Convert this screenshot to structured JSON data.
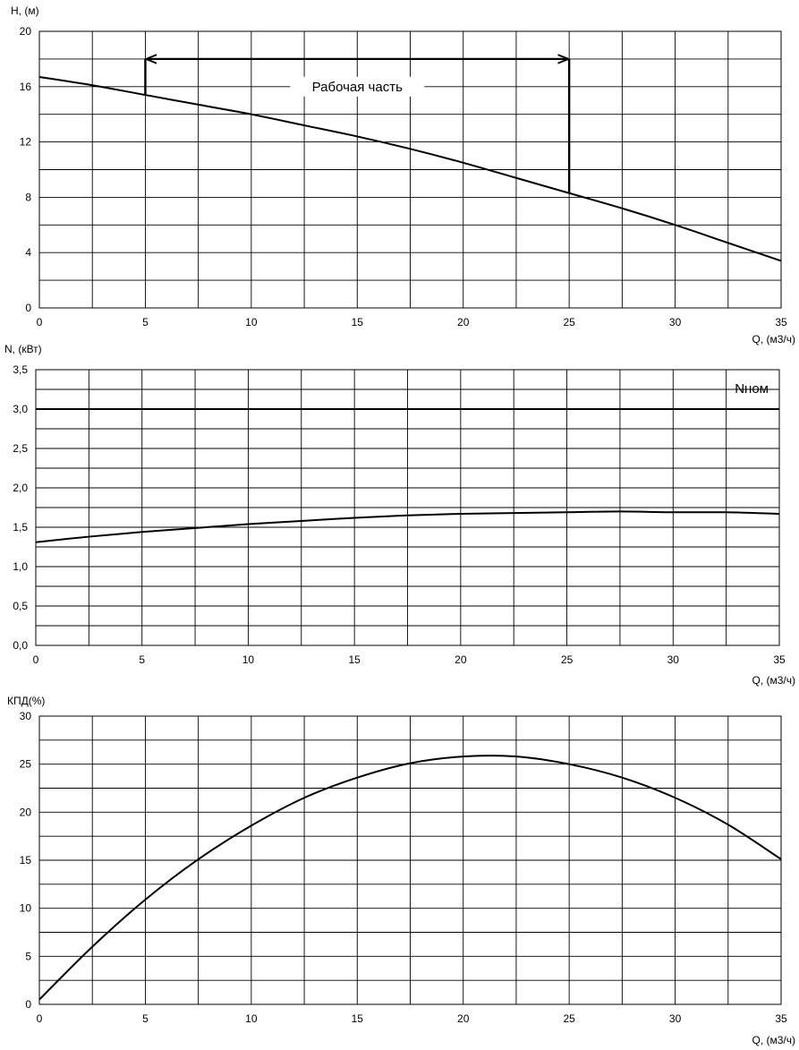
{
  "chart_data": [
    {
      "type": "line",
      "ylabel": "H, (м)",
      "xlabel": "Q, (м3/ч)",
      "xlim": [
        0,
        35
      ],
      "ylim": [
        0,
        20
      ],
      "x_ticks": [
        "0",
        "5",
        "10",
        "15",
        "20",
        "25",
        "30",
        "35"
      ],
      "y_ticks": [
        "0",
        "4",
        "8",
        "12",
        "16",
        "20"
      ],
      "grid": true,
      "series": [
        {
          "x": [
            0,
            2.5,
            5,
            7.5,
            10,
            12.5,
            15,
            17.5,
            20,
            22.5,
            25,
            27.5,
            30,
            32.5,
            35
          ],
          "y": [
            16.7,
            16.1,
            15.4,
            14.7,
            14.0,
            13.2,
            12.4,
            11.5,
            10.5,
            9.4,
            8.3,
            7.2,
            6.0,
            4.7,
            3.4
          ]
        }
      ],
      "annotation": {
        "text": "Рабочая часть",
        "x_range": [
          5,
          25
        ]
      }
    },
    {
      "type": "line",
      "ylabel": "N, (кВт)",
      "xlabel": "Q, (м3/ч)",
      "xlim": [
        0,
        35
      ],
      "ylim": [
        0,
        3.5
      ],
      "x_ticks": [
        "0",
        "5",
        "10",
        "15",
        "20",
        "25",
        "30",
        "35"
      ],
      "y_ticks": [
        "0,0",
        "0,5",
        "1,0",
        "1,5",
        "2,0",
        "2,5",
        "3,0",
        "3,5"
      ],
      "grid": true,
      "series": [
        {
          "x": [
            0,
            2.5,
            5,
            7.5,
            10,
            12.5,
            15,
            17.5,
            20,
            22.5,
            25,
            27.5,
            30,
            32.5,
            35
          ],
          "y": [
            1.31,
            1.38,
            1.44,
            1.49,
            1.54,
            1.58,
            1.62,
            1.65,
            1.67,
            1.68,
            1.69,
            1.7,
            1.69,
            1.69,
            1.67
          ]
        }
      ],
      "reference_line": {
        "label": "Nном",
        "y": 3.0
      }
    },
    {
      "type": "line",
      "ylabel": "КПД(%)",
      "xlabel": "Q, (м3/ч)",
      "xlim": [
        0,
        35
      ],
      "ylim": [
        0,
        30
      ],
      "x_ticks": [
        "0",
        "5",
        "10",
        "15",
        "20",
        "25",
        "30",
        "35"
      ],
      "y_ticks": [
        "0",
        "5",
        "10",
        "15",
        "20",
        "25",
        "30"
      ],
      "grid": true,
      "series": [
        {
          "x": [
            0,
            2.5,
            5,
            7.5,
            10,
            12.5,
            15,
            17.5,
            20,
            22.5,
            25,
            27.5,
            30,
            32.5,
            35
          ],
          "y": [
            0.5,
            6.0,
            10.9,
            15.1,
            18.6,
            21.5,
            23.6,
            25.1,
            25.8,
            25.8,
            25.0,
            23.6,
            21.5,
            18.7,
            15.1
          ]
        }
      ]
    }
  ]
}
